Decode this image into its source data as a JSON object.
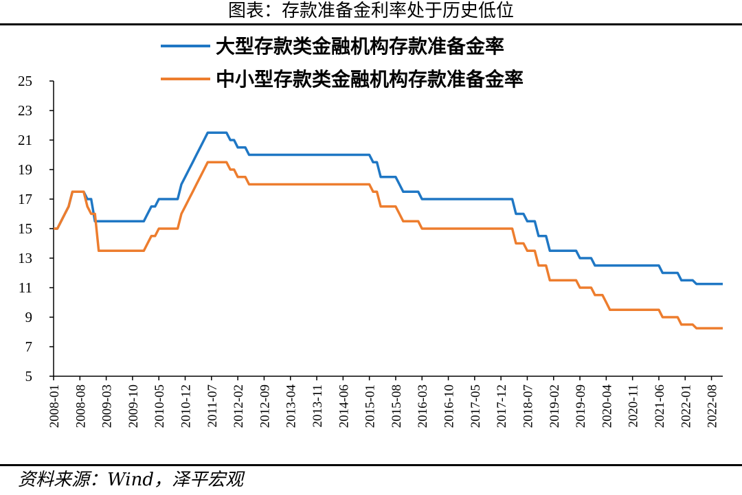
{
  "header": {
    "title": "图表：存款准备金利率处于历史低位"
  },
  "footer": {
    "source": "资料来源：Wind，泽平宏观"
  },
  "chart_data": {
    "type": "line",
    "title": "图表：存款准备金利率处于历史低位",
    "xlabel": "",
    "ylabel": "",
    "ylim": [
      5,
      25
    ],
    "yticks": [
      5,
      7,
      9,
      11,
      13,
      15,
      17,
      19,
      21,
      23,
      25
    ],
    "xlim": [
      "2008-01",
      "2022-11"
    ],
    "xticks": [
      "2008-01",
      "2008-08",
      "2009-03",
      "2009-10",
      "2010-05",
      "2010-12",
      "2011-07",
      "2012-02",
      "2012-09",
      "2013-04",
      "2013-11",
      "2014-06",
      "2015-01",
      "2015-08",
      "2016-03",
      "2016-10",
      "2017-05",
      "2017-12",
      "2018-07",
      "2019-02",
      "2019-09",
      "2020-04",
      "2020-11",
      "2021-06",
      "2022-01",
      "2022-08"
    ],
    "grid": false,
    "legend": "top",
    "series": [
      {
        "name": "大型存款类金融机构存款准备金率",
        "color": "#1f77c4",
        "points": [
          [
            "2008-01",
            15
          ],
          [
            "2008-02",
            15
          ],
          [
            "2008-03",
            15.5
          ],
          [
            "2008-04",
            16
          ],
          [
            "2008-05",
            16.5
          ],
          [
            "2008-06",
            17.5
          ],
          [
            "2008-07",
            17.5
          ],
          [
            "2008-08",
            17.5
          ],
          [
            "2008-09",
            17.5
          ],
          [
            "2008-10",
            17
          ],
          [
            "2008-11",
            17
          ],
          [
            "2008-12",
            15.5
          ],
          [
            "2009-01",
            15.5
          ],
          [
            "2010-01",
            15.5
          ],
          [
            "2010-02",
            16
          ],
          [
            "2010-03",
            16.5
          ],
          [
            "2010-04",
            16.5
          ],
          [
            "2010-05",
            17
          ],
          [
            "2010-06",
            17
          ],
          [
            "2010-07",
            17
          ],
          [
            "2010-08",
            17
          ],
          [
            "2010-09",
            17
          ],
          [
            "2010-10",
            17
          ],
          [
            "2010-11",
            18
          ],
          [
            "2010-12",
            18.5
          ],
          [
            "2011-01",
            19
          ],
          [
            "2011-02",
            19.5
          ],
          [
            "2011-03",
            20
          ],
          [
            "2011-04",
            20.5
          ],
          [
            "2011-05",
            21
          ],
          [
            "2011-06",
            21.5
          ],
          [
            "2011-07",
            21.5
          ],
          [
            "2011-08",
            21.5
          ],
          [
            "2011-09",
            21.5
          ],
          [
            "2011-10",
            21.5
          ],
          [
            "2011-11",
            21.5
          ],
          [
            "2011-12",
            21
          ],
          [
            "2012-01",
            21
          ],
          [
            "2012-02",
            20.5
          ],
          [
            "2012-03",
            20.5
          ],
          [
            "2012-04",
            20.5
          ],
          [
            "2012-05",
            20
          ],
          [
            "2015-01",
            20
          ],
          [
            "2015-02",
            19.5
          ],
          [
            "2015-03",
            19.5
          ],
          [
            "2015-04",
            18.5
          ],
          [
            "2015-05",
            18.5
          ],
          [
            "2015-06",
            18.5
          ],
          [
            "2015-07",
            18.5
          ],
          [
            "2015-08",
            18.5
          ],
          [
            "2015-09",
            18
          ],
          [
            "2015-10",
            17.5
          ],
          [
            "2015-11",
            17.5
          ],
          [
            "2016-01",
            17.5
          ],
          [
            "2016-02",
            17.5
          ],
          [
            "2016-03",
            17
          ],
          [
            "2018-03",
            17
          ],
          [
            "2018-04",
            16
          ],
          [
            "2018-05",
            16
          ],
          [
            "2018-06",
            16
          ],
          [
            "2018-07",
            15.5
          ],
          [
            "2018-08",
            15.5
          ],
          [
            "2018-09",
            15.5
          ],
          [
            "2018-10",
            14.5
          ],
          [
            "2018-11",
            14.5
          ],
          [
            "2018-12",
            14.5
          ],
          [
            "2019-01",
            13.5
          ],
          [
            "2019-08",
            13.5
          ],
          [
            "2019-09",
            13
          ],
          [
            "2019-10",
            13
          ],
          [
            "2019-11",
            13
          ],
          [
            "2019-12",
            13
          ],
          [
            "2020-01",
            12.5
          ],
          [
            "2021-06",
            12.5
          ],
          [
            "2021-07",
            12
          ],
          [
            "2021-08",
            12
          ],
          [
            "2021-09",
            12
          ],
          [
            "2021-10",
            12
          ],
          [
            "2021-11",
            12
          ],
          [
            "2021-12",
            11.5
          ],
          [
            "2022-01",
            11.5
          ],
          [
            "2022-02",
            11.5
          ],
          [
            "2022-03",
            11.5
          ],
          [
            "2022-04",
            11.25
          ],
          [
            "2022-11",
            11.25
          ]
        ]
      },
      {
        "name": "中小型存款类金融机构存款准备金率",
        "color": "#ed7d2e",
        "points": [
          [
            "2008-01",
            15
          ],
          [
            "2008-02",
            15
          ],
          [
            "2008-03",
            15.5
          ],
          [
            "2008-04",
            16
          ],
          [
            "2008-05",
            16.5
          ],
          [
            "2008-06",
            17.5
          ],
          [
            "2008-07",
            17.5
          ],
          [
            "2008-08",
            17.5
          ],
          [
            "2008-09",
            17.5
          ],
          [
            "2008-10",
            16.5
          ],
          [
            "2008-11",
            16
          ],
          [
            "2008-12",
            16
          ],
          [
            "2009-01",
            13.5
          ],
          [
            "2010-01",
            13.5
          ],
          [
            "2010-02",
            14
          ],
          [
            "2010-03",
            14.5
          ],
          [
            "2010-04",
            14.5
          ],
          [
            "2010-05",
            15
          ],
          [
            "2010-06",
            15
          ],
          [
            "2010-07",
            15
          ],
          [
            "2010-08",
            15
          ],
          [
            "2010-09",
            15
          ],
          [
            "2010-10",
            15
          ],
          [
            "2010-11",
            16
          ],
          [
            "2010-12",
            16.5
          ],
          [
            "2011-01",
            17
          ],
          [
            "2011-02",
            17.5
          ],
          [
            "2011-03",
            18
          ],
          [
            "2011-04",
            18.5
          ],
          [
            "2011-05",
            19
          ],
          [
            "2011-06",
            19.5
          ],
          [
            "2011-07",
            19.5
          ],
          [
            "2011-08",
            19.5
          ],
          [
            "2011-09",
            19.5
          ],
          [
            "2011-10",
            19.5
          ],
          [
            "2011-11",
            19.5
          ],
          [
            "2011-12",
            19
          ],
          [
            "2012-01",
            19
          ],
          [
            "2012-02",
            18.5
          ],
          [
            "2012-03",
            18.5
          ],
          [
            "2012-04",
            18.5
          ],
          [
            "2012-05",
            18
          ],
          [
            "2015-01",
            18
          ],
          [
            "2015-02",
            17.5
          ],
          [
            "2015-03",
            17.5
          ],
          [
            "2015-04",
            16.5
          ],
          [
            "2015-05",
            16.5
          ],
          [
            "2015-06",
            16.5
          ],
          [
            "2015-07",
            16.5
          ],
          [
            "2015-08",
            16.5
          ],
          [
            "2015-09",
            16
          ],
          [
            "2015-10",
            15.5
          ],
          [
            "2015-11",
            15.5
          ],
          [
            "2016-01",
            15.5
          ],
          [
            "2016-02",
            15.5
          ],
          [
            "2016-03",
            15
          ],
          [
            "2018-03",
            15
          ],
          [
            "2018-04",
            14
          ],
          [
            "2018-05",
            14
          ],
          [
            "2018-06",
            14
          ],
          [
            "2018-07",
            13.5
          ],
          [
            "2018-08",
            13.5
          ],
          [
            "2018-09",
            13.5
          ],
          [
            "2018-10",
            12.5
          ],
          [
            "2018-11",
            12.5
          ],
          [
            "2018-12",
            12.5
          ],
          [
            "2019-01",
            11.5
          ],
          [
            "2019-08",
            11.5
          ],
          [
            "2019-09",
            11
          ],
          [
            "2019-10",
            11
          ],
          [
            "2019-11",
            11
          ],
          [
            "2019-12",
            11
          ],
          [
            "2020-01",
            10.5
          ],
          [
            "2020-02",
            10.5
          ],
          [
            "2020-03",
            10.5
          ],
          [
            "2020-04",
            10
          ],
          [
            "2020-05",
            9.5
          ],
          [
            "2021-06",
            9.5
          ],
          [
            "2021-07",
            9
          ],
          [
            "2021-08",
            9
          ],
          [
            "2021-09",
            9
          ],
          [
            "2021-10",
            9
          ],
          [
            "2021-11",
            9
          ],
          [
            "2021-12",
            8.5
          ],
          [
            "2022-01",
            8.5
          ],
          [
            "2022-02",
            8.5
          ],
          [
            "2022-03",
            8.5
          ],
          [
            "2022-04",
            8.25
          ],
          [
            "2022-11",
            8.25
          ]
        ]
      }
    ]
  }
}
